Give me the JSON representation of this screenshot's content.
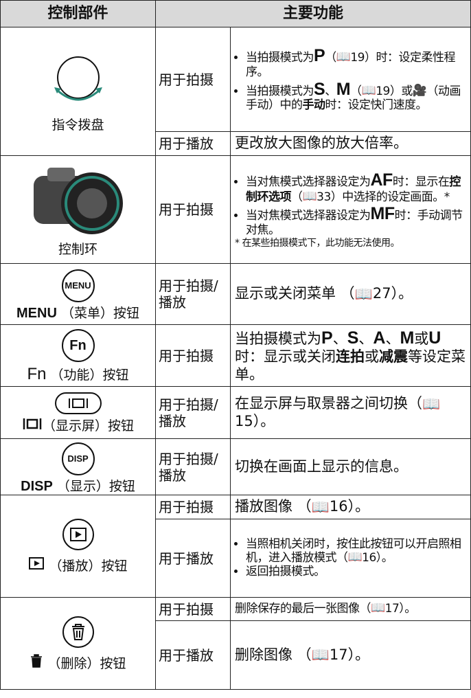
{
  "header": {
    "component": "控制部件",
    "function": "主要功能"
  },
  "rows": [
    {
      "component": "指令拨盘",
      "functions": [
        {
          "mode": "用于拍摄",
          "items": [
            [
              "当拍摄模式为",
              "P",
              "（",
              "19）时：设定柔性程序。"
            ],
            [
              "当拍摄模式为",
              "S",
              "、",
              "M",
              "（",
              "19）或",
              "（动画手动）中的",
              "手动",
              "时：设定快门速度。"
            ]
          ]
        },
        {
          "mode": "用于播放",
          "text": [
            "更改放大图像的放大倍率。"
          ]
        }
      ]
    },
    {
      "component": "控制环",
      "functions": [
        {
          "mode": "用于拍摄",
          "items": [
            [
              "当对焦模式选择器设定为",
              "AF",
              "时：显示在",
              "控制环选项",
              "（",
              "33）中选择的设定画面。*"
            ],
            [
              "当对焦模式选择器设定为",
              "MF",
              "时：手动调节对焦。"
            ]
          ],
          "note": "* 在某些拍摄模式下，此功能无法使用。"
        }
      ]
    },
    {
      "icon_label": "MENU",
      "component": [
        "MENU",
        "（菜单）按钮"
      ],
      "functions": [
        {
          "mode": "用于拍摄/播放",
          "text": [
            "显示或关闭菜单 （",
            "27）。"
          ]
        }
      ]
    },
    {
      "icon_label": "Fn",
      "component": [
        "Fn",
        "（功能）按钮"
      ],
      "functions": [
        {
          "mode": "用于拍摄",
          "text": [
            "当拍摄模式为",
            "P",
            "、",
            "S",
            "、",
            "A",
            "、",
            "M",
            "或",
            "U",
            "时：显示或关闭",
            "连拍",
            "或",
            "减震",
            "等设定菜单。"
          ]
        }
      ]
    },
    {
      "component": [
        "（显示屏）按钮"
      ],
      "functions": [
        {
          "mode": "用于拍摄/播放",
          "text": [
            "在显示屏与取景器之间切换（",
            "15）。"
          ]
        }
      ]
    },
    {
      "icon_label": "DISP",
      "component": [
        "DISP",
        "（显示）按钮"
      ],
      "functions": [
        {
          "mode": "用于拍摄/播放",
          "text": [
            "切换在画面上显示的信息。"
          ]
        }
      ]
    },
    {
      "component": [
        "（播放）按钮"
      ],
      "functions": [
        {
          "mode": "用于拍摄",
          "text": [
            "播放图像 （",
            "16）。"
          ]
        },
        {
          "mode": "用于播放",
          "items": [
            [
              "当照相机关闭时，按住此按钮可以开启照相机，进入播放模式（",
              "16）。"
            ],
            [
              "返回拍摄模式。"
            ]
          ]
        }
      ]
    },
    {
      "component": [
        "（删除）按钮"
      ],
      "functions": [
        {
          "mode": "用于拍摄",
          "text": [
            "删除保存的最后一张图像（",
            "17）。"
          ]
        },
        {
          "mode": "用于播放",
          "text": [
            "删除图像 （",
            "17）。"
          ]
        }
      ]
    }
  ]
}
